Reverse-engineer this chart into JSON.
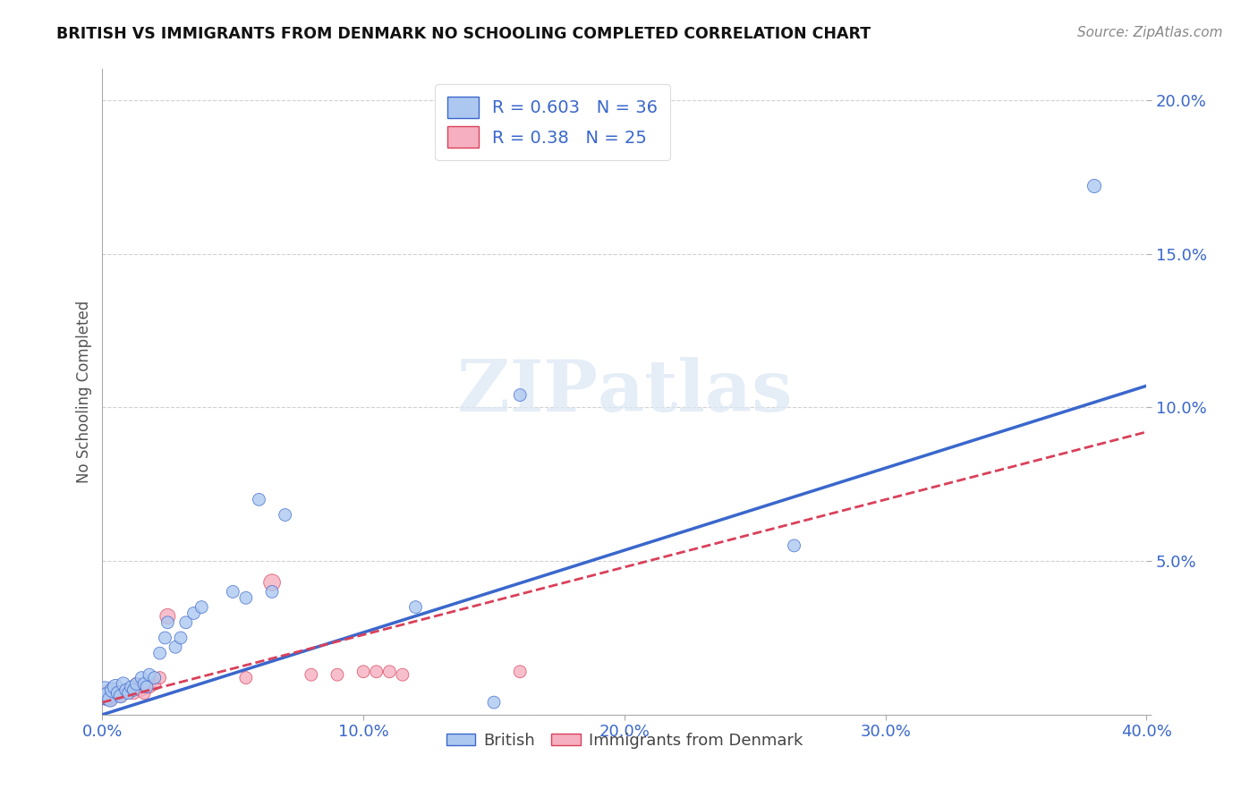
{
  "title": "BRITISH VS IMMIGRANTS FROM DENMARK NO SCHOOLING COMPLETED CORRELATION CHART",
  "source": "Source: ZipAtlas.com",
  "ylabel": "No Schooling Completed",
  "xlim": [
    0.0,
    0.4
  ],
  "ylim": [
    0.0,
    0.21
  ],
  "xticks": [
    0.0,
    0.1,
    0.2,
    0.3,
    0.4
  ],
  "xticklabels": [
    "0.0%",
    "10.0%",
    "20.0%",
    "30.0%",
    "40.0%"
  ],
  "yticks": [
    0.0,
    0.05,
    0.1,
    0.15,
    0.2
  ],
  "yticklabels": [
    "",
    "5.0%",
    "10.0%",
    "15.0%",
    "20.0%"
  ],
  "british_R": 0.603,
  "british_N": 36,
  "denmark_R": 0.38,
  "denmark_N": 25,
  "british_color": "#adc8f0",
  "denmark_color": "#f5afc0",
  "british_line_color": "#3a67cc",
  "denmark_line_color": "#d9405a",
  "british_scatter_x": [
    0.001,
    0.002,
    0.003,
    0.004,
    0.005,
    0.006,
    0.007,
    0.008,
    0.009,
    0.01,
    0.011,
    0.012,
    0.013,
    0.015,
    0.016,
    0.017,
    0.018,
    0.02,
    0.022,
    0.024,
    0.025,
    0.028,
    0.03,
    0.032,
    0.035,
    0.038,
    0.05,
    0.055,
    0.06,
    0.065,
    0.07,
    0.12,
    0.15,
    0.16,
    0.265,
    0.38
  ],
  "british_scatter_y": [
    0.007,
    0.006,
    0.005,
    0.008,
    0.009,
    0.007,
    0.006,
    0.01,
    0.008,
    0.007,
    0.009,
    0.008,
    0.01,
    0.012,
    0.01,
    0.009,
    0.013,
    0.012,
    0.02,
    0.025,
    0.03,
    0.022,
    0.025,
    0.03,
    0.033,
    0.035,
    0.04,
    0.038,
    0.07,
    0.04,
    0.065,
    0.035,
    0.004,
    0.104,
    0.055,
    0.172
  ],
  "british_scatter_size": [
    350,
    200,
    150,
    150,
    150,
    120,
    120,
    120,
    100,
    100,
    100,
    100,
    100,
    100,
    100,
    100,
    100,
    100,
    100,
    100,
    100,
    100,
    100,
    100,
    100,
    100,
    100,
    100,
    100,
    100,
    100,
    100,
    100,
    100,
    100,
    120
  ],
  "denmark_scatter_x": [
    0.001,
    0.002,
    0.003,
    0.005,
    0.006,
    0.007,
    0.009,
    0.01,
    0.012,
    0.013,
    0.015,
    0.016,
    0.018,
    0.02,
    0.022,
    0.025,
    0.055,
    0.065,
    0.08,
    0.09,
    0.1,
    0.105,
    0.11,
    0.115,
    0.16
  ],
  "denmark_scatter_y": [
    0.006,
    0.007,
    0.005,
    0.008,
    0.007,
    0.006,
    0.007,
    0.008,
    0.007,
    0.01,
    0.008,
    0.007,
    0.009,
    0.01,
    0.012,
    0.032,
    0.012,
    0.043,
    0.013,
    0.013,
    0.014,
    0.014,
    0.014,
    0.013,
    0.014
  ],
  "denmark_scatter_size": [
    200,
    150,
    120,
    100,
    100,
    100,
    100,
    100,
    100,
    100,
    100,
    100,
    100,
    100,
    100,
    150,
    100,
    180,
    100,
    100,
    100,
    100,
    100,
    100,
    100
  ],
  "british_line_x0": 0.0,
  "british_line_y0": 0.0,
  "british_line_x1": 0.4,
  "british_line_y1": 0.107,
  "denmark_line_x0": 0.0,
  "denmark_line_y0": 0.004,
  "denmark_line_x1": 0.4,
  "denmark_line_y1": 0.092
}
